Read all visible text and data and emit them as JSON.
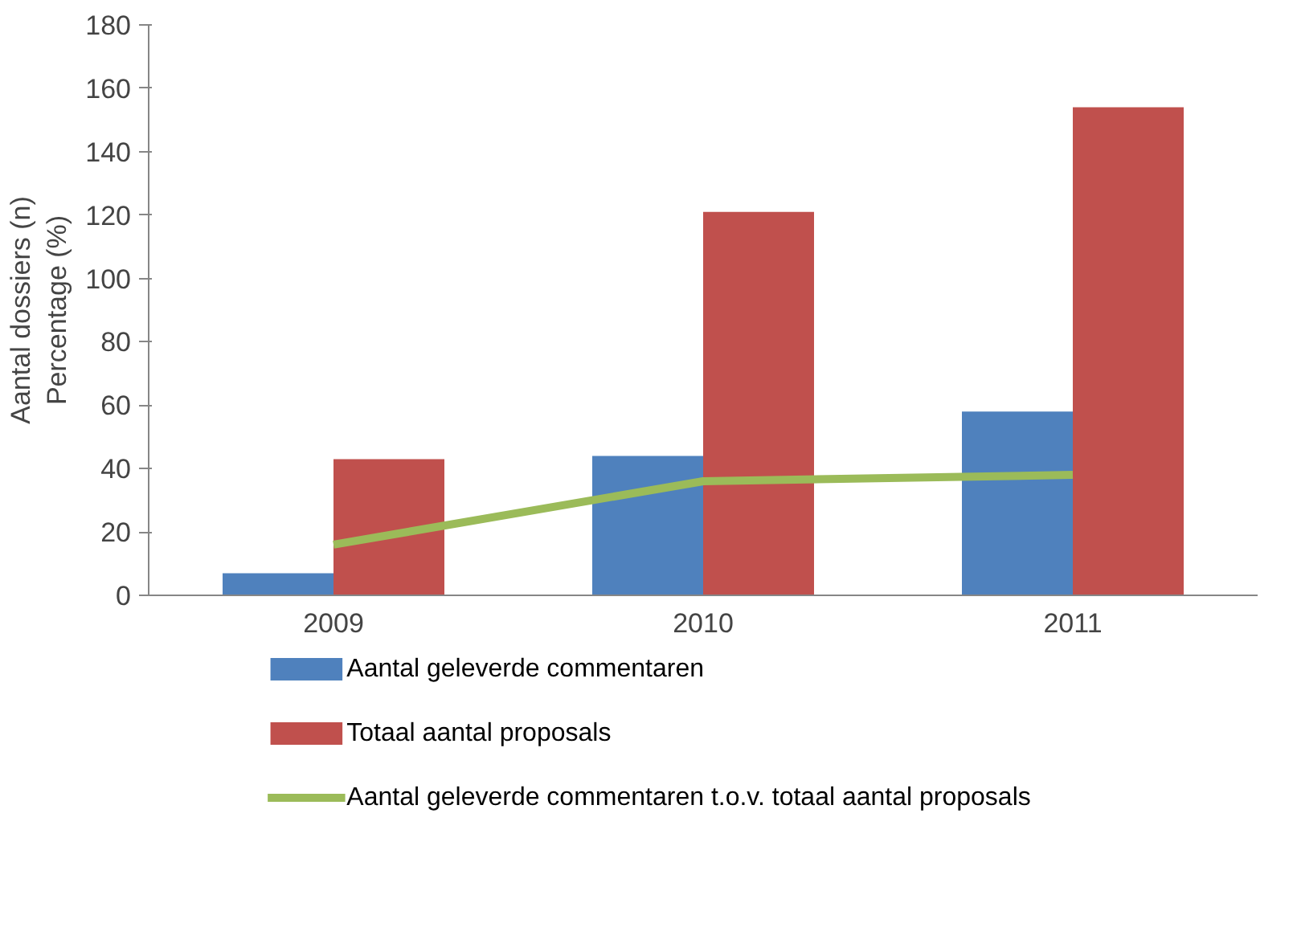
{
  "chart_data": {
    "type": "bar",
    "ylabel": "Aantal dossiers (n)\nPercentage (%)",
    "categories": [
      "2009",
      "2010",
      "2011"
    ],
    "series": [
      {
        "name": "Aantal geleverde commentaren",
        "color": "#4f81bd",
        "values": [
          7,
          44,
          58
        ]
      },
      {
        "name": "Totaal aantal proposals",
        "color": "#c0504d",
        "values": [
          43,
          121,
          154
        ]
      },
      {
        "name": "Aantal geleverde commentaren t.o.v. totaal aantal proposals",
        "color": "#9bbb59",
        "type": "line",
        "values": [
          16,
          36,
          38
        ]
      }
    ],
    "ylim": [
      0,
      180
    ],
    "yticks": [
      0,
      20,
      40,
      60,
      80,
      100,
      120,
      140,
      160,
      180
    ],
    "grid": false,
    "legend": "bottom"
  }
}
